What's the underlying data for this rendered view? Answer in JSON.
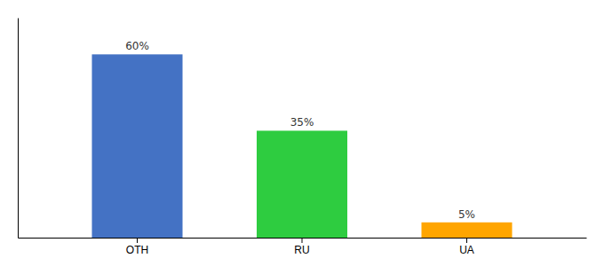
{
  "chart_data": {
    "type": "bar",
    "categories": [
      "OTH",
      "RU",
      "UA"
    ],
    "values": [
      60,
      35,
      5
    ],
    "value_labels": [
      "60%",
      "35%",
      "5%"
    ],
    "colors": [
      "#4472C4",
      "#2ECC40",
      "#FFA500"
    ],
    "ylim": [
      0,
      72
    ],
    "data_labels": true,
    "tick_labels": "x",
    "grid": false
  }
}
